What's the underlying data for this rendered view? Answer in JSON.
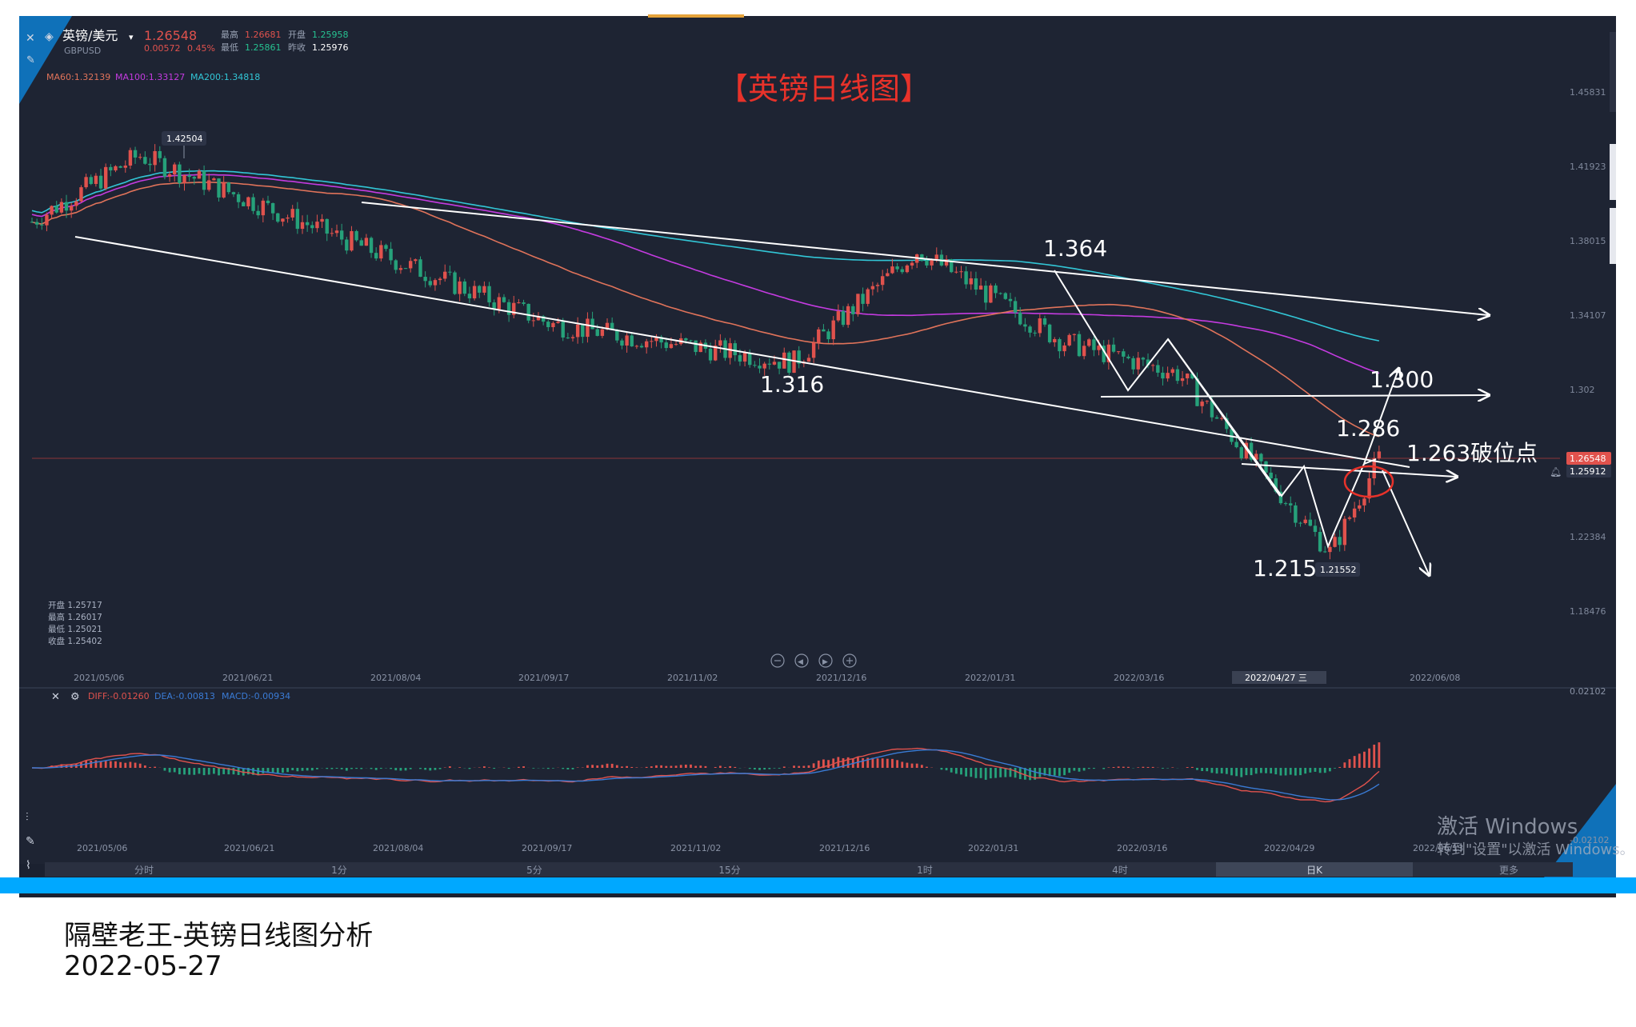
{
  "header": {
    "symbol": "英镑/美元",
    "code": "GBPUSD",
    "price": "1.26548",
    "change": "0.00572",
    "change_pct": "0.45%",
    "high_label": "最高",
    "high": "1.26681",
    "open_label": "开盘",
    "open": "1.25958",
    "low_label": "最低",
    "low": "1.25861",
    "prev_label": "昨收",
    "prev": "1.25976"
  },
  "ma_legend": [
    {
      "text": "MA60:1.32139",
      "color": "#e0735a"
    },
    {
      "text": "MA100:1.33127",
      "color": "#c43be0"
    },
    {
      "text": "MA200:1.34818",
      "color": "#32c6d6"
    }
  ],
  "ohlc_box": [
    {
      "label": "开盘",
      "value": "1.25717"
    },
    {
      "label": "最高",
      "value": "1.26017"
    },
    {
      "label": "最低",
      "value": "1.25021"
    },
    {
      "label": "收盘",
      "value": "1.25402"
    }
  ],
  "macd_legend": [
    {
      "text": "DIFF:-0.01260",
      "color": "#e0524d"
    },
    {
      "text": "DEA:-0.00813",
      "color": "#3a7bd5"
    },
    {
      "text": "MACD:-0.00934",
      "color": "#3a7bd5"
    }
  ],
  "timeframes": [
    "分时",
    "1分",
    "5分",
    "15分",
    "1时",
    "4时",
    "日K",
    "更多"
  ],
  "active_timeframe": "日K",
  "watermark": {
    "line1": "激活 Windows",
    "line2": "转到\"设置\"以激活 Windows。"
  },
  "captions": {
    "line1": "隔壁老王-英镑日线图分析",
    "line2": "2022-05-27"
  },
  "chart_data": {
    "type": "candlestick",
    "title": "【英镑日线图】",
    "x_ticks": [
      "2021/05/06",
      "2021/06/21",
      "2021/08/04",
      "2021/09/17",
      "2021/11/02",
      "2021/12/16",
      "2022/01/31",
      "2022/03/16",
      "2022/04/27 三",
      "2022/06/08"
    ],
    "macd_x_ticks": [
      "2021/05/06",
      "2021/06/21",
      "2021/08/04",
      "2021/09/17",
      "2021/11/02",
      "2021/12/16",
      "2022/01/31",
      "2022/03/16",
      "2022/04/29",
      "2022/06/13"
    ],
    "y_ticks": [
      1.45831,
      1.41923,
      1.38015,
      1.34107,
      1.302,
      1.26548,
      1.25912,
      1.22384,
      1.18476
    ],
    "current_price_tag": "1.26548",
    "secondary_price_tag": "1.25912",
    "macd_y_ticks": [
      "0.02102",
      "-0.02102"
    ],
    "high_marker": "1.42504",
    "low_marker": "1.21552",
    "annotations": [
      "1.364",
      "1.316",
      "1.300",
      "1.286",
      "1.263破位点",
      "1.215"
    ],
    "key_points": [
      {
        "date": "2021/06/01",
        "price": 1.42504
      },
      {
        "date": "2021/09/29",
        "price": 1.336
      },
      {
        "date": "2021/12/08",
        "price": 1.316
      },
      {
        "date": "2022/01/13",
        "price": 1.375
      },
      {
        "date": "2022/02/24",
        "price": 1.327
      },
      {
        "date": "2022/03/30",
        "price": 1.31
      },
      {
        "date": "2022/05/13",
        "price": 1.21552
      },
      {
        "date": "2022/05/27",
        "price": 1.26548
      }
    ],
    "colors": {
      "up": "#e0524d",
      "down": "#26a17a",
      "background": "#1e2433"
    }
  }
}
